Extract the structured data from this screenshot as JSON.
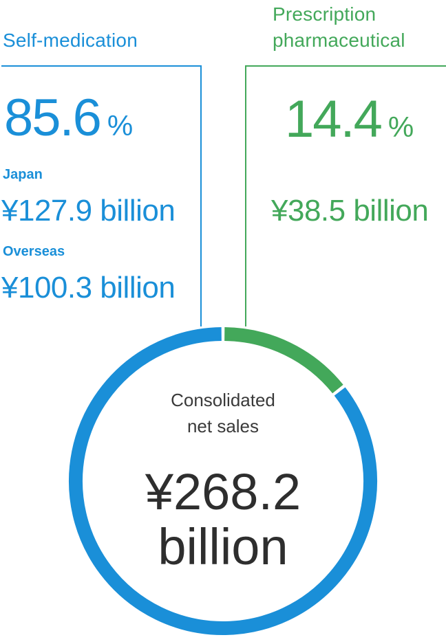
{
  "segments": {
    "self_medication": {
      "title": "Self-medication",
      "percent": "85.6",
      "percent_sign": "%",
      "japan_label": "Japan",
      "japan_value": "¥127.9 billion",
      "overseas_label": "Overseas",
      "overseas_value": "¥100.3 billion",
      "color": "#1a8fd8"
    },
    "prescription": {
      "title_line1": "Prescription",
      "title_line2": "pharmaceutical",
      "percent": "14.4",
      "percent_sign": "%",
      "value": "¥38.5 billion",
      "color": "#43a85a"
    }
  },
  "center": {
    "label_line1": "Consolidated",
    "label_line2": "net sales",
    "value_line1": "¥268.2",
    "value_line2": "billion"
  },
  "chart_data": {
    "type": "pie",
    "style": "donut",
    "title": "",
    "categories": [
      "Self-medication",
      "Prescription pharmaceutical"
    ],
    "values": [
      85.6,
      14.4
    ],
    "unit": "%",
    "colors": [
      "#1a8fd8",
      "#43a85a"
    ]
  }
}
